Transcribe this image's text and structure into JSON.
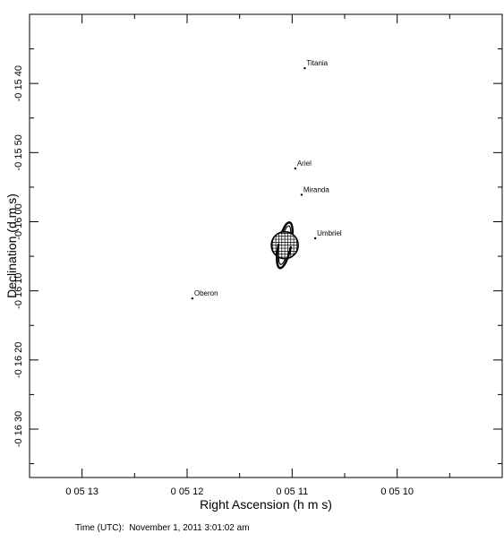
{
  "chart_data": {
    "type": "scatter",
    "title": "",
    "xlabel": "Right Ascension (h m s)",
    "ylabel": "Declination (d m s)",
    "x_unit": "seconds of right ascension after 0h 05m 00s",
    "y_unit": "arcseconds of declination (negative = south)",
    "xlim": [
      13.5,
      9.0
    ],
    "ylim": [
      -997,
      -930
    ],
    "x_reversed": true,
    "grid": false,
    "x_ticks": [
      {
        "value": 13,
        "label": "0 05 13"
      },
      {
        "value": 12,
        "label": "0 05 12"
      },
      {
        "value": 11,
        "label": "0 05 11"
      },
      {
        "value": 10,
        "label": "0 05 10"
      }
    ],
    "y_ticks": [
      {
        "value": -940,
        "label": "-0 15 40"
      },
      {
        "value": -950,
        "label": "-0 15 50"
      },
      {
        "value": -960,
        "label": "-0 16 00"
      },
      {
        "value": -970,
        "label": "-0 16 10"
      },
      {
        "value": -980,
        "label": "-0 16 20"
      },
      {
        "value": -990,
        "label": "-0 16 30"
      }
    ],
    "planet": {
      "x": 11.07,
      "y": -963.4
    },
    "moons": [
      {
        "name": "Titania",
        "x": 10.88,
        "y": -937.8
      },
      {
        "name": "Ariel",
        "x": 10.97,
        "y": -952.3
      },
      {
        "name": "Miranda",
        "x": 10.91,
        "y": -956.1
      },
      {
        "name": "Umbriel",
        "x": 10.78,
        "y": -962.4
      },
      {
        "name": "Oberon",
        "x": 11.95,
        "y": -971.1
      }
    ]
  },
  "footer": {
    "time_label": "Time (UTC):",
    "time_value": "November 1, 2011 3:01:02 am"
  }
}
